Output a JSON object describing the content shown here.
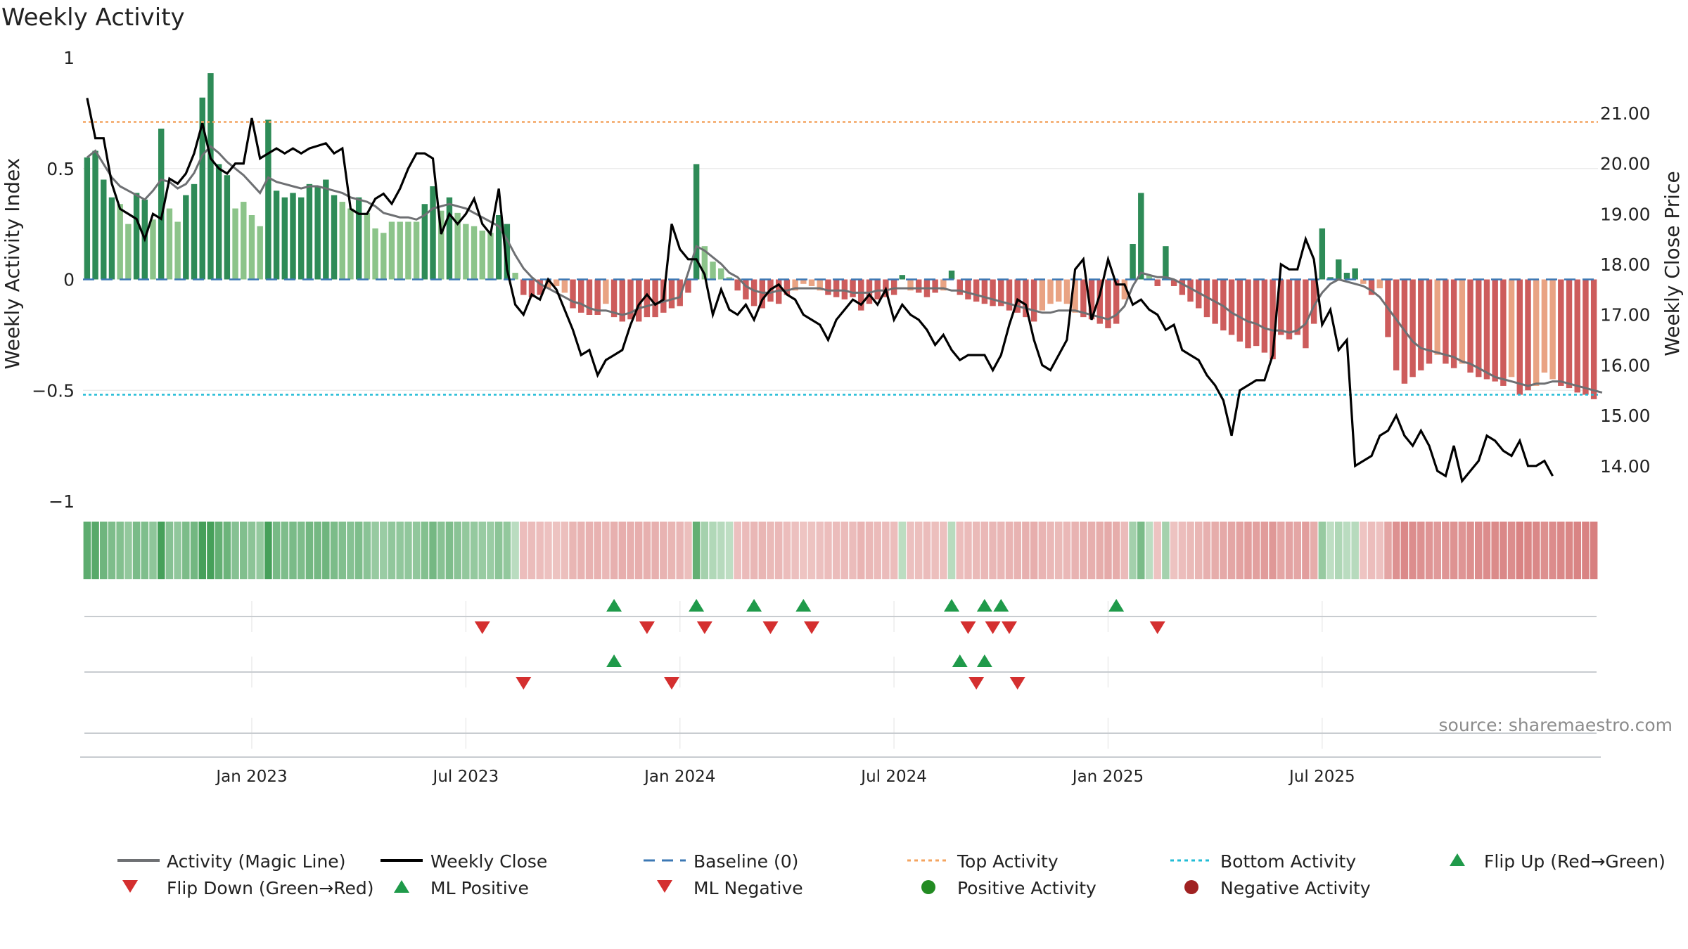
{
  "chart_data": {
    "type": "bar",
    "title": "Weekly Activity",
    "ylabel": "Weekly Activity Index",
    "y2label": "Weekly Close Price",
    "ylim": [
      -1,
      1
    ],
    "y2lim": [
      13.3,
      22.1
    ],
    "yticks": [
      "1",
      "0.5",
      "0",
      "−0.5",
      "−1"
    ],
    "y2ticks": [
      "21.00",
      "20.00",
      "19.00",
      "18.00",
      "17.00",
      "16.00",
      "15.00",
      "14.00"
    ],
    "xticks": [
      "Jan 2023",
      "Jul 2023",
      "Jan 2024",
      "Jul 2024",
      "Jan 2025",
      "Jul 2025"
    ],
    "top_activity": 0.71,
    "bottom_activity": -0.52,
    "activity": [
      0.55,
      0.58,
      0.45,
      0.37,
      0.34,
      0.25,
      0.39,
      0.36,
      0.27,
      0.68,
      0.32,
      0.26,
      0.38,
      0.43,
      0.82,
      0.93,
      0.52,
      0.47,
      0.32,
      0.35,
      0.29,
      0.24,
      0.72,
      0.4,
      0.37,
      0.39,
      0.37,
      0.43,
      0.42,
      0.45,
      0.38,
      0.35,
      0.32,
      0.37,
      0.3,
      0.23,
      0.21,
      0.26,
      0.26,
      0.26,
      0.26,
      0.34,
      0.42,
      0.31,
      0.37,
      0.3,
      0.25,
      0.24,
      0.22,
      0.21,
      0.29,
      0.25,
      0.03,
      -0.07,
      -0.08,
      -0.07,
      -0.04,
      -0.03,
      -0.06,
      -0.13,
      -0.15,
      -0.16,
      -0.16,
      -0.11,
      -0.17,
      -0.19,
      -0.18,
      -0.19,
      -0.17,
      -0.17,
      -0.15,
      -0.13,
      -0.12,
      -0.06,
      0.52,
      0.15,
      0.08,
      0.05,
      0.01,
      -0.05,
      -0.09,
      -0.12,
      -0.13,
      -0.1,
      -0.11,
      -0.07,
      -0.05,
      -0.02,
      -0.03,
      -0.05,
      -0.07,
      -0.08,
      -0.09,
      -0.08,
      -0.14,
      -0.11,
      -0.09,
      -0.08,
      -0.07,
      0.02,
      -0.05,
      -0.06,
      -0.08,
      -0.06,
      -0.05,
      0.04,
      -0.07,
      -0.09,
      -0.1,
      -0.11,
      -0.12,
      -0.12,
      -0.14,
      -0.15,
      -0.17,
      -0.19,
      -0.14,
      -0.11,
      -0.1,
      -0.11,
      -0.15,
      -0.17,
      -0.18,
      -0.2,
      -0.22,
      -0.2,
      -0.09,
      0.16,
      0.39,
      0.02,
      -0.03,
      0.15,
      -0.03,
      -0.07,
      -0.1,
      -0.13,
      -0.17,
      -0.2,
      -0.23,
      -0.25,
      -0.28,
      -0.31,
      -0.3,
      -0.33,
      -0.36,
      -0.25,
      -0.27,
      -0.25,
      -0.31,
      -0.2,
      0.23,
      0.01,
      0.09,
      0.03,
      0.05,
      -0.02,
      -0.07,
      -0.04,
      -0.26,
      -0.41,
      -0.47,
      -0.44,
      -0.41,
      -0.38,
      -0.34,
      -0.38,
      -0.4,
      -0.38,
      -0.42,
      -0.44,
      -0.45,
      -0.46,
      -0.48,
      -0.44,
      -0.52,
      -0.5,
      -0.48,
      -0.42,
      -0.45,
      -0.48,
      -0.49,
      -0.51,
      -0.52,
      -0.54
    ],
    "magic_line": [
      0.55,
      0.58,
      0.52,
      0.46,
      0.42,
      0.4,
      0.38,
      0.36,
      0.4,
      0.45,
      0.44,
      0.41,
      0.43,
      0.48,
      0.56,
      0.6,
      0.57,
      0.53,
      0.5,
      0.47,
      0.43,
      0.39,
      0.46,
      0.44,
      0.43,
      0.42,
      0.41,
      0.42,
      0.42,
      0.41,
      0.4,
      0.39,
      0.37,
      0.36,
      0.35,
      0.33,
      0.3,
      0.29,
      0.28,
      0.28,
      0.27,
      0.29,
      0.32,
      0.33,
      0.34,
      0.33,
      0.32,
      0.3,
      0.28,
      0.26,
      0.24,
      0.18,
      0.11,
      0.05,
      0.01,
      -0.02,
      -0.04,
      -0.06,
      -0.08,
      -0.1,
      -0.11,
      -0.13,
      -0.14,
      -0.14,
      -0.15,
      -0.16,
      -0.15,
      -0.13,
      -0.12,
      -0.11,
      -0.1,
      -0.09,
      -0.08,
      0.03,
      0.15,
      0.13,
      0.1,
      0.07,
      0.03,
      0.01,
      -0.03,
      -0.05,
      -0.06,
      -0.06,
      -0.05,
      -0.05,
      -0.04,
      -0.04,
      -0.04,
      -0.04,
      -0.05,
      -0.05,
      -0.05,
      -0.06,
      -0.06,
      -0.06,
      -0.05,
      -0.05,
      -0.04,
      -0.04,
      -0.04,
      -0.04,
      -0.04,
      -0.04,
      -0.04,
      -0.05,
      -0.05,
      -0.06,
      -0.07,
      -0.08,
      -0.09,
      -0.1,
      -0.11,
      -0.12,
      -0.13,
      -0.14,
      -0.15,
      -0.15,
      -0.14,
      -0.14,
      -0.14,
      -0.15,
      -0.16,
      -0.17,
      -0.18,
      -0.16,
      -0.12,
      -0.03,
      0.03,
      0.02,
      0.01,
      0.01,
      0.0,
      -0.02,
      -0.04,
      -0.06,
      -0.08,
      -0.1,
      -0.12,
      -0.15,
      -0.17,
      -0.19,
      -0.2,
      -0.22,
      -0.23,
      -0.23,
      -0.24,
      -0.23,
      -0.2,
      -0.12,
      -0.06,
      -0.02,
      0.0,
      -0.01,
      -0.02,
      -0.03,
      -0.05,
      -0.08,
      -0.13,
      -0.18,
      -0.23,
      -0.28,
      -0.31,
      -0.32,
      -0.33,
      -0.34,
      -0.35,
      -0.37,
      -0.38,
      -0.4,
      -0.42,
      -0.44,
      -0.45,
      -0.46,
      -0.47,
      -0.48,
      -0.47,
      -0.47,
      -0.46,
      -0.46,
      -0.47,
      -0.48,
      -0.49,
      -0.5,
      -0.51
    ],
    "weekly_close": [
      21.3,
      20.5,
      20.5,
      19.6,
      19.1,
      19.0,
      18.9,
      18.5,
      19.0,
      18.9,
      19.7,
      19.6,
      19.8,
      20.2,
      20.8,
      20.1,
      19.9,
      19.8,
      20.0,
      20.0,
      20.9,
      20.1,
      20.2,
      20.3,
      20.2,
      20.3,
      20.2,
      20.3,
      20.35,
      20.4,
      20.2,
      20.3,
      19.1,
      19.0,
      19.0,
      19.3,
      19.4,
      19.2,
      19.5,
      19.9,
      20.2,
      20.2,
      20.1,
      18.6,
      19.0,
      18.8,
      19.0,
      19.3,
      18.8,
      18.6,
      19.5,
      17.9,
      17.2,
      17.0,
      17.4,
      17.3,
      17.7,
      17.5,
      17.1,
      16.7,
      16.2,
      16.3,
      15.8,
      16.1,
      16.2,
      16.3,
      16.8,
      17.2,
      17.4,
      17.2,
      17.3,
      18.8,
      18.3,
      18.1,
      18.1,
      17.8,
      17.0,
      17.5,
      17.1,
      17.0,
      17.2,
      16.9,
      17.3,
      17.5,
      17.6,
      17.4,
      17.3,
      17.0,
      16.9,
      16.8,
      16.5,
      16.9,
      17.1,
      17.3,
      17.2,
      17.4,
      17.2,
      17.5,
      16.9,
      17.2,
      17.0,
      16.9,
      16.7,
      16.4,
      16.6,
      16.3,
      16.1,
      16.2,
      16.2,
      16.2,
      15.9,
      16.2,
      16.8,
      17.3,
      17.2,
      16.5,
      16.0,
      15.9,
      16.2,
      16.5,
      17.9,
      18.1,
      16.9,
      17.4,
      18.1,
      17.6,
      17.6,
      17.2,
      17.3,
      17.1,
      17.0,
      16.7,
      16.8,
      16.3,
      16.2,
      16.1,
      15.8,
      15.6,
      15.3,
      14.6,
      15.5,
      15.6,
      15.7,
      15.7,
      16.2,
      18.0,
      17.9,
      17.9,
      18.5,
      18.1,
      16.8,
      17.1,
      16.3,
      16.5,
      14.0,
      14.1,
      14.2,
      14.6,
      14.7,
      15.0,
      14.6,
      14.4,
      14.7,
      14.4,
      13.9,
      13.8,
      14.4,
      13.7,
      13.9,
      14.1,
      14.6,
      14.5,
      14.3,
      14.2,
      14.5,
      14.0,
      14.0,
      14.1,
      13.8
    ],
    "flip_up_weeks": [
      64,
      74,
      81,
      87,
      105,
      109,
      111,
      125
    ],
    "flip_down_weeks": [
      48,
      68,
      75,
      83,
      88,
      107,
      110,
      112,
      130
    ],
    "ml_positive_weeks": [
      64,
      106,
      109
    ],
    "ml_negative_weeks": [
      53,
      71,
      108,
      113
    ],
    "source": "source: sharemaestro.com",
    "legend": [
      "Activity (Magic Line)",
      "Weekly Close",
      "Baseline (0)",
      "Top Activity",
      "Bottom Activity",
      "Flip Up (Red→Green)",
      "Flip Down (Green→Red)",
      "ML Positive",
      "ML Negative",
      "Positive Activity",
      "Negative Activity"
    ],
    "colors": {
      "pos_strong": "#2e8b57",
      "pos_weak": "#8cc48a",
      "neg_strong": "#cd5c5c",
      "neg_weak": "#e9a383",
      "magic_line": "#6e7073",
      "close": "#000000",
      "baseline": "#3c78b4",
      "top": "#f4a460",
      "bottom": "#22bcd6",
      "up": "#1f9a4a",
      "down": "#d42f2f",
      "pos_dot": "#228b22",
      "neg_dot": "#a02121"
    }
  }
}
